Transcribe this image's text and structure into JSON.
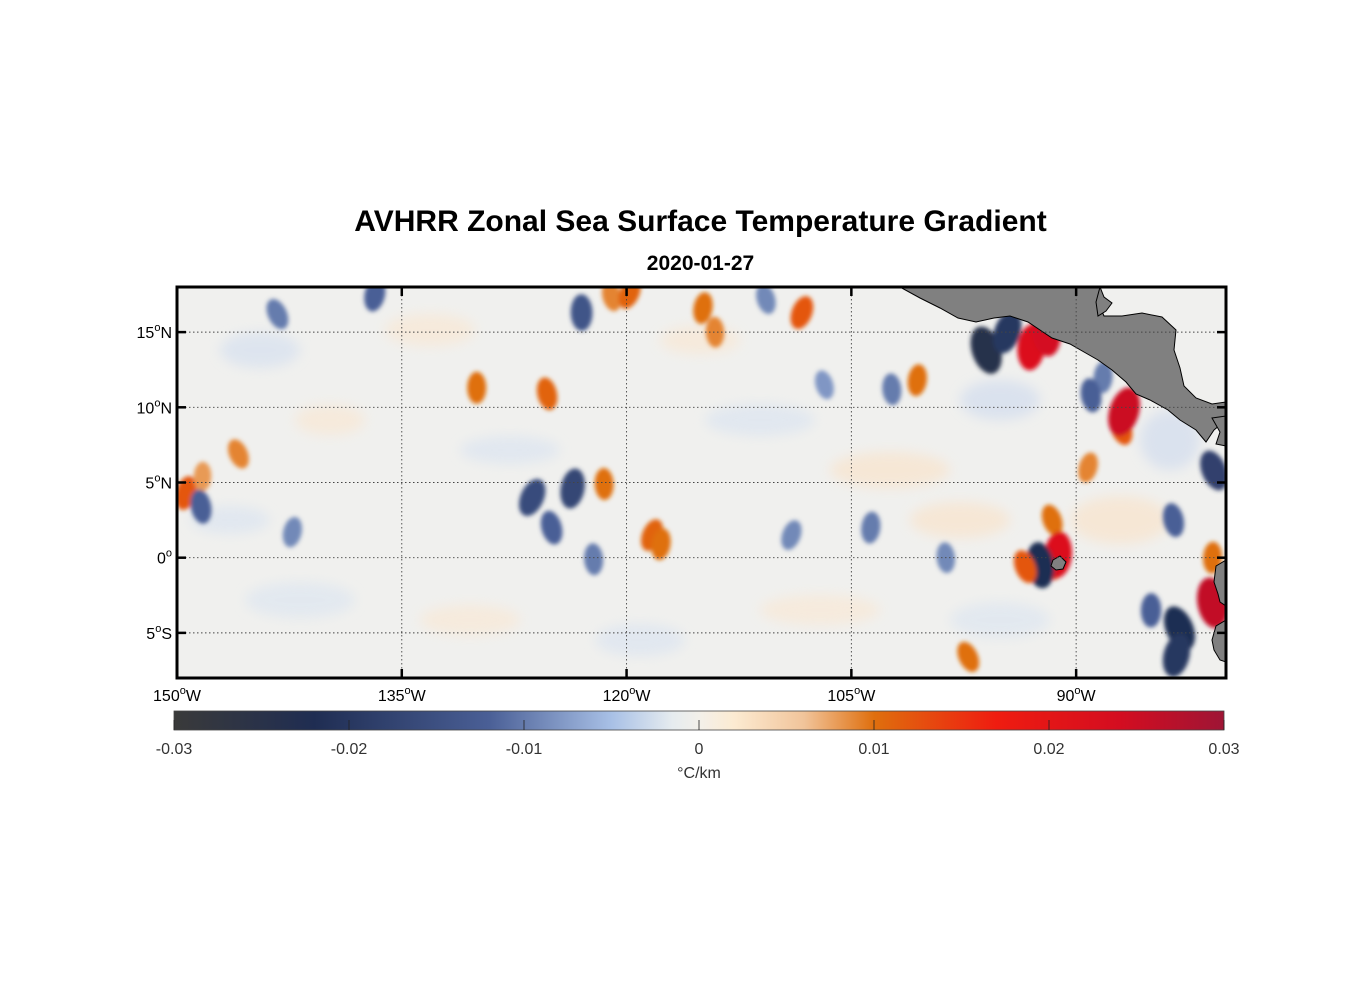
{
  "title": "AVHRR Zonal Sea Surface Temperature Gradient",
  "date": "2020-01-27",
  "map": {
    "lon_range": [
      -150,
      -80
    ],
    "lat_range": [
      -8,
      18
    ],
    "lon_ticks": [
      {
        "value": -150,
        "deg": "150",
        "dir": "W"
      },
      {
        "value": -135,
        "deg": "135",
        "dir": "W"
      },
      {
        "value": -120,
        "deg": "120",
        "dir": "W"
      },
      {
        "value": -105,
        "deg": "105",
        "dir": "W"
      },
      {
        "value": -90,
        "deg": "90",
        "dir": "W"
      }
    ],
    "lat_ticks": [
      {
        "value": 15,
        "deg": "15",
        "dir": "N"
      },
      {
        "value": 10,
        "deg": "10",
        "dir": "N"
      },
      {
        "value": 5,
        "deg": "5",
        "dir": "N"
      },
      {
        "value": 0,
        "deg": "0",
        "dir": ""
      },
      {
        "value": -5,
        "deg": "5",
        "dir": "S"
      }
    ],
    "land_color": "#808080",
    "features": [
      {
        "lon": -143.3,
        "lat": 16.2,
        "v": -0.01
      },
      {
        "lon": -136.8,
        "lat": 17.5,
        "v": -0.012
      },
      {
        "lon": -123.0,
        "lat": 16.3,
        "v": -0.014
      },
      {
        "lon": -121.0,
        "lat": 17.4,
        "v": 0.009
      },
      {
        "lon": -119.8,
        "lat": 17.6,
        "v": 0.011
      },
      {
        "lon": -114.9,
        "lat": 16.6,
        "v": 0.01
      },
      {
        "lon": -114.1,
        "lat": 15.0,
        "v": 0.009
      },
      {
        "lon": -110.7,
        "lat": 17.2,
        "v": -0.009
      },
      {
        "lon": -108.3,
        "lat": 16.3,
        "v": 0.012
      },
      {
        "lon": -100.6,
        "lat": 11.8,
        "v": 0.01
      },
      {
        "lon": -102.3,
        "lat": 11.2,
        "v": -0.01
      },
      {
        "lon": -96.0,
        "lat": 13.8,
        "v": -0.024
      },
      {
        "lon": -94.6,
        "lat": 15.0,
        "v": -0.02
      },
      {
        "lon": -93.0,
        "lat": 14.0,
        "v": 0.022
      },
      {
        "lon": -92.0,
        "lat": 15.0,
        "v": 0.024
      },
      {
        "lon": -87.0,
        "lat": 8.6,
        "v": 0.012
      },
      {
        "lon": -86.8,
        "lat": 9.7,
        "v": 0.025
      },
      {
        "lon": -88.2,
        "lat": 12.0,
        "v": -0.01
      },
      {
        "lon": -89.0,
        "lat": 10.8,
        "v": -0.012
      },
      {
        "lon": -80.8,
        "lat": 5.8,
        "v": -0.018
      },
      {
        "lon": -149.4,
        "lat": 4.3,
        "v": 0.012
      },
      {
        "lon": -148.3,
        "lat": 5.4,
        "v": 0.008
      },
      {
        "lon": -148.4,
        "lat": 3.4,
        "v": -0.012
      },
      {
        "lon": -145.9,
        "lat": 6.9,
        "v": 0.009
      },
      {
        "lon": -142.3,
        "lat": 1.7,
        "v": -0.009
      },
      {
        "lon": -130.0,
        "lat": 11.3,
        "v": 0.01
      },
      {
        "lon": -125.3,
        "lat": 10.9,
        "v": 0.011
      },
      {
        "lon": -126.3,
        "lat": 4.0,
        "v": -0.016
      },
      {
        "lon": -123.6,
        "lat": 4.6,
        "v": -0.017
      },
      {
        "lon": -121.5,
        "lat": 4.9,
        "v": 0.01
      },
      {
        "lon": -125.0,
        "lat": 2.0,
        "v": -0.012
      },
      {
        "lon": -118.3,
        "lat": 1.5,
        "v": 0.011
      },
      {
        "lon": -117.7,
        "lat": 0.9,
        "v": 0.01
      },
      {
        "lon": -122.2,
        "lat": -0.1,
        "v": -0.01
      },
      {
        "lon": -106.8,
        "lat": 11.5,
        "v": -0.008
      },
      {
        "lon": -109.0,
        "lat": 1.5,
        "v": -0.009
      },
      {
        "lon": -103.7,
        "lat": 2.0,
        "v": -0.01
      },
      {
        "lon": -98.7,
        "lat": 0.0,
        "v": -0.009
      },
      {
        "lon": -91.6,
        "lat": 2.5,
        "v": 0.01
      },
      {
        "lon": -91.3,
        "lat": -0.3,
        "v": 0.014
      },
      {
        "lon": -91.2,
        "lat": 0.2,
        "v": 0.022
      },
      {
        "lon": -92.4,
        "lat": -0.5,
        "v": -0.022
      },
      {
        "lon": -93.4,
        "lat": -0.6,
        "v": 0.012
      },
      {
        "lon": -89.2,
        "lat": 6.0,
        "v": 0.009
      },
      {
        "lon": -80.9,
        "lat": 0.0,
        "v": 0.01
      },
      {
        "lon": -80.9,
        "lat": -3.0,
        "v": 0.026
      },
      {
        "lon": -83.1,
        "lat": -4.7,
        "v": -0.022
      },
      {
        "lon": -83.3,
        "lat": -6.5,
        "v": -0.02
      },
      {
        "lon": -85.0,
        "lat": -3.5,
        "v": -0.012
      },
      {
        "lon": -83.5,
        "lat": 2.5,
        "v": -0.012
      },
      {
        "lon": -97.2,
        "lat": -6.6,
        "v": 0.01
      }
    ]
  },
  "colorbar": {
    "min": -0.03,
    "max": 0.03,
    "tick_labels": [
      "-0.03",
      "-0.02",
      "-0.01",
      "0",
      "0.01",
      "0.02",
      "0.03"
    ],
    "units": "°C/km",
    "stops": [
      {
        "v": -0.03,
        "color": "#3a3a3a"
      },
      {
        "v": -0.022,
        "color": "#1f2d52"
      },
      {
        "v": -0.012,
        "color": "#4a5f96"
      },
      {
        "v": -0.005,
        "color": "#a8c0e6"
      },
      {
        "v": -0.0015,
        "color": "#e6ecef"
      },
      {
        "v": 0.0,
        "color": "#f3f0ea"
      },
      {
        "v": 0.002,
        "color": "#fcebd2"
      },
      {
        "v": 0.006,
        "color": "#f1c49a"
      },
      {
        "v": 0.01,
        "color": "#df6f0e"
      },
      {
        "v": 0.017,
        "color": "#ef1c10"
      },
      {
        "v": 0.024,
        "color": "#d40d20"
      },
      {
        "v": 0.03,
        "color": "#9e1535"
      }
    ]
  }
}
